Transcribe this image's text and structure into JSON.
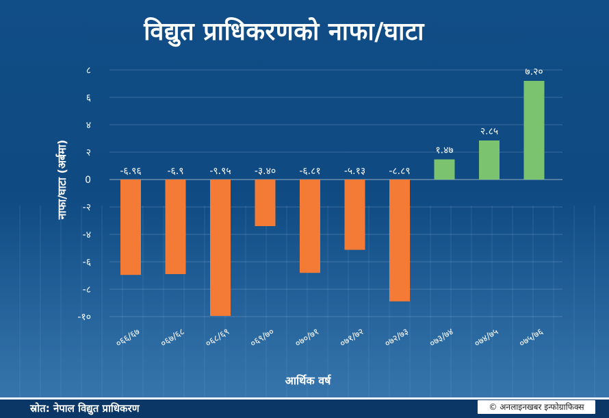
{
  "header": {
    "title": "विद्युत प्राधिकरणको नाफा/घाटा"
  },
  "footer": {
    "source": "स्रोत: नेपाल विद्युत प्राधिकरण",
    "credit": "© अनलाइनखबर इन्फोग्राफिक्स"
  },
  "colors": {
    "loss": "#f47b35",
    "profit": "#7bc36e",
    "background": "#114d86",
    "text": "#ffffff"
  },
  "chart_data": {
    "type": "bar",
    "title": "विद्युत प्राधिकरणको नाफा/घाटा",
    "xlabel": "आर्थिक वर्ष",
    "ylabel": "नाफा/घाटा (अर्बमा)",
    "ylim": [
      -10,
      8
    ],
    "yticks": [
      8,
      6,
      4,
      2,
      0,
      -2,
      -4,
      -6,
      -8,
      -10
    ],
    "ytick_labels": [
      "८",
      "६",
      "४",
      "२",
      "0",
      "-२",
      "-४",
      "-६",
      "-८",
      "-१०"
    ],
    "grid": true,
    "categories": [
      "०६६/६७",
      "०६७/६८",
      "०६८/६९",
      "०६९/७०",
      "०७०/७१",
      "०७१/७२",
      "०७२/७३",
      "०७३/७४",
      "०७४/७५",
      "०७५/७६"
    ],
    "values": [
      -6.96,
      -6.9,
      -9.95,
      -3.4,
      -6.81,
      -5.13,
      -8.89,
      1.47,
      2.85,
      7.2
    ],
    "value_labels": [
      "-६.९६",
      "-६.९",
      "-९.९५",
      "-३.४०",
      "-६.८१",
      "-५.१३",
      "-८.८९",
      "१.४७",
      "२.८५",
      "७.२०"
    ]
  }
}
